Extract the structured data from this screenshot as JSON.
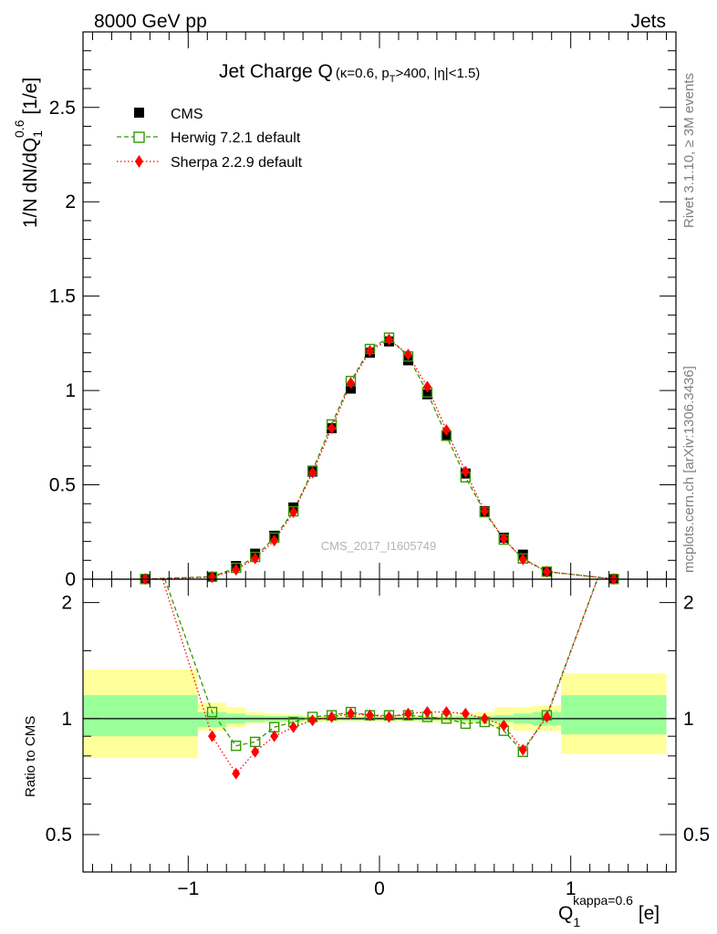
{
  "header": {
    "left": "8000 GeV pp",
    "right": "Jets"
  },
  "title": {
    "main": "Jet Charge Q",
    "sub": "(κ=0.6, p",
    "sub_index": "T",
    "sub_tail": ">400, |η|<1.5)"
  },
  "side_labels": {
    "rivet": "Rivet 3.1.10, ≥ 3M events",
    "mcplots": "mcplots.cern.ch [arXiv:1306.3436]"
  },
  "watermark": "CMS_2017_I1605749",
  "y_label": {
    "main": "1/N dN/dQ",
    "sub": "1",
    "sup": "0.6",
    "unit": " [1/e]"
  },
  "x_label": {
    "main": "Q",
    "sub": "1",
    "sup": "kappa=0.6",
    "unit": " [e]"
  },
  "ratio_label": "Ratio to CMS",
  "legend": [
    {
      "name": "CMS",
      "color": "#000000",
      "marker": "filled-square"
    },
    {
      "name": "Herwig 7.2.1 default",
      "color": "#339900",
      "marker": "open-square",
      "dash": "dashed"
    },
    {
      "name": "Sherpa 2.2.9 default",
      "color": "#ff0000",
      "marker": "filled-diamond",
      "dash": "dotted"
    }
  ],
  "ticks": {
    "main_y": [
      "0",
      "0.5",
      "1",
      "1.5",
      "2",
      "2.5"
    ],
    "ratio_y": [
      "0.5",
      "1",
      "2"
    ],
    "x": [
      "−1",
      "0",
      "1"
    ]
  },
  "chart_data": {
    "type": "scatter",
    "x": [
      -1.225,
      -0.875,
      -0.75,
      -0.65,
      -0.55,
      -0.45,
      -0.35,
      -0.25,
      -0.15,
      -0.05,
      0.05,
      0.15,
      0.25,
      0.35,
      0.45,
      0.55,
      0.65,
      0.75,
      0.875,
      1.225
    ],
    "x_bin_edges": [
      -1.55,
      -0.95,
      -0.8,
      -0.7,
      -0.6,
      -0.5,
      -0.4,
      -0.3,
      -0.2,
      -0.1,
      0.0,
      0.1,
      0.2,
      0.3,
      0.4,
      0.5,
      0.6,
      0.7,
      0.8,
      0.95,
      1.5
    ],
    "series": [
      {
        "name": "CMS",
        "values": [
          0.001,
          0.012,
          0.07,
          0.135,
          0.23,
          0.38,
          0.57,
          0.8,
          1.01,
          1.2,
          1.26,
          1.16,
          0.98,
          0.76,
          0.56,
          0.36,
          0.22,
          0.13,
          0.04,
          0.001
        ]
      },
      {
        "name": "Herwig 7.2.1 default",
        "values": [
          0.001,
          0.013,
          0.06,
          0.118,
          0.22,
          0.36,
          0.575,
          0.82,
          1.05,
          1.22,
          1.28,
          1.18,
          0.99,
          0.76,
          0.54,
          0.355,
          0.21,
          0.11,
          0.04,
          0.001
        ]
      },
      {
        "name": "Sherpa 2.2.9 default",
        "values": [
          0.001,
          0.011,
          0.05,
          0.11,
          0.205,
          0.355,
          0.565,
          0.8,
          1.04,
          1.21,
          1.27,
          1.19,
          1.02,
          0.79,
          0.57,
          0.36,
          0.215,
          0.105,
          0.04,
          0.001
        ]
      }
    ],
    "ratio": {
      "series": [
        {
          "name": "Herwig 7.2.1 default",
          "values": [
            3.2,
            1.04,
            0.85,
            0.87,
            0.95,
            0.98,
            1.01,
            1.02,
            1.04,
            1.02,
            1.02,
            1.02,
            1.01,
            1.0,
            0.97,
            0.98,
            0.93,
            0.82,
            1.02,
            3.0
          ]
        },
        {
          "name": "Sherpa 2.2.9 default",
          "values": [
            3.2,
            0.9,
            0.72,
            0.82,
            0.9,
            0.95,
            0.99,
            1.01,
            1.03,
            1.02,
            1.01,
            1.03,
            1.04,
            1.04,
            1.03,
            1.0,
            0.96,
            0.83,
            1.01,
            3.0
          ]
        }
      ],
      "band_inner": [
        [
          0.9,
          1.15
        ],
        [
          0.95,
          1.04
        ],
        [
          0.97,
          1.03
        ],
        [
          0.98,
          1.02
        ],
        [
          0.985,
          1.015
        ],
        [
          0.985,
          1.015
        ],
        [
          0.99,
          1.01
        ],
        [
          0.99,
          1.01
        ],
        [
          0.99,
          1.01
        ],
        [
          0.99,
          1.01
        ],
        [
          0.99,
          1.01
        ],
        [
          0.99,
          1.01
        ],
        [
          0.99,
          1.01
        ],
        [
          0.99,
          1.01
        ],
        [
          0.985,
          1.015
        ],
        [
          0.985,
          1.015
        ],
        [
          0.98,
          1.02
        ],
        [
          0.97,
          1.03
        ],
        [
          0.96,
          1.04
        ],
        [
          0.91,
          1.15
        ]
      ],
      "band_outer": [
        [
          0.79,
          1.34
        ],
        [
          0.93,
          1.1
        ],
        [
          0.95,
          1.07
        ],
        [
          0.97,
          1.04
        ],
        [
          0.975,
          1.03
        ],
        [
          0.975,
          1.025
        ],
        [
          0.98,
          1.02
        ],
        [
          0.98,
          1.02
        ],
        [
          0.985,
          1.02
        ],
        [
          0.985,
          1.015
        ],
        [
          0.985,
          1.015
        ],
        [
          0.985,
          1.02
        ],
        [
          0.98,
          1.02
        ],
        [
          0.98,
          1.02
        ],
        [
          0.975,
          1.03
        ],
        [
          0.97,
          1.04
        ],
        [
          0.95,
          1.07
        ],
        [
          0.93,
          1.07
        ],
        [
          0.93,
          1.08
        ],
        [
          0.81,
          1.31
        ]
      ],
      "ylim": [
        0.4,
        2.3
      ],
      "yscale": "log"
    },
    "xlim": [
      -1.55,
      1.55
    ],
    "ylim": [
      0,
      2.9
    ],
    "colors": {
      "data": "#000000",
      "herwig": "#339900",
      "sherpa": "#ff0000",
      "band_inner": "#99ff99",
      "band_outer": "#ffff99"
    }
  }
}
